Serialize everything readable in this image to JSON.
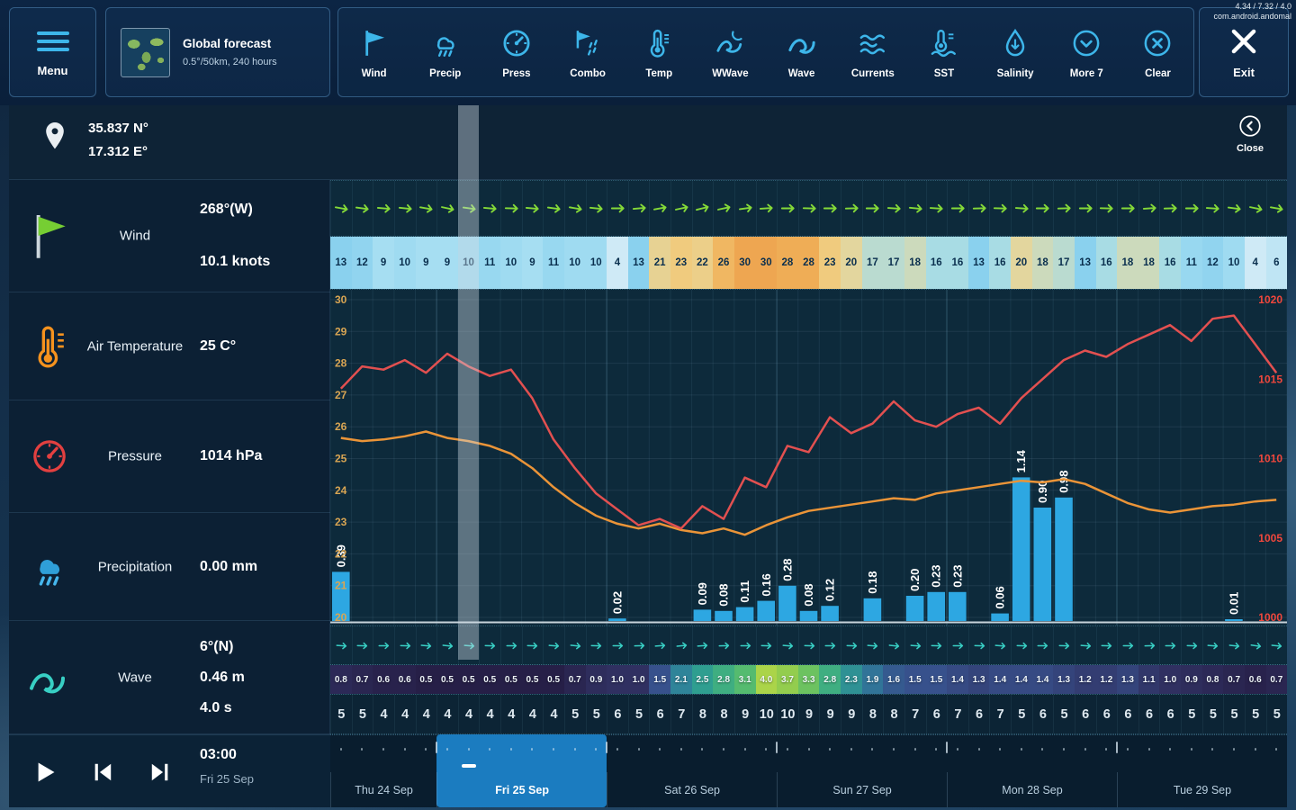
{
  "app": {
    "debug_line1": "4.34 / 7.32 / 4.0",
    "debug_line2": "com.android.andomal"
  },
  "topbar": {
    "menu_label": "Menu",
    "forecast": {
      "title": "Global forecast",
      "subtitle": "0.5°/50km, 240 hours"
    },
    "items": [
      {
        "icon": "wind",
        "label": "Wind"
      },
      {
        "icon": "precip",
        "label": "Precip"
      },
      {
        "icon": "press",
        "label": "Press"
      },
      {
        "icon": "combo",
        "label": "Combo"
      },
      {
        "icon": "temp",
        "label": "Temp"
      },
      {
        "icon": "wwave",
        "label": "WWave"
      },
      {
        "icon": "wave",
        "label": "Wave"
      },
      {
        "icon": "currents",
        "label": "Currents"
      },
      {
        "icon": "sst",
        "label": "SST"
      },
      {
        "icon": "salinity",
        "label": "Salinity"
      },
      {
        "icon": "more",
        "label": "More 7"
      },
      {
        "icon": "clear",
        "label": "Clear"
      }
    ],
    "exit_label": "Exit"
  },
  "panel": {
    "location": {
      "lat": "35.837 N°",
      "lon": "17.312 E°"
    },
    "close_label": "Close",
    "rows": [
      {
        "name": "wind",
        "label": "Wind",
        "values": [
          "268°(W)",
          "10.1 knots"
        ]
      },
      {
        "name": "air-temperature",
        "label": "Air Temperature",
        "values": [
          "25 C°"
        ]
      },
      {
        "name": "pressure",
        "label": "Pressure",
        "values": [
          "1014 hPa"
        ]
      },
      {
        "name": "precipitation",
        "label": "Precipitation",
        "values": [
          "0.00 mm"
        ]
      },
      {
        "name": "wave",
        "label": "Wave",
        "values": [
          "6°(N)",
          "0.46 m",
          "4.0 s"
        ]
      }
    ],
    "player": {
      "time": "03:00",
      "date": "Fri 25 Sep"
    }
  },
  "colors": {
    "accent": "#3db6ea",
    "temperature_line": "#e25050",
    "pressure_line": "#ea9438",
    "precipitation_bar": "#2da7e2",
    "timeline_highlight": "#1b7cc0",
    "wind_arrow": "#84d938",
    "wave_arrow": "#38cfc4",
    "temp_axis_label": "#d8a553",
    "pressure_axis_label": "#f0473c"
  },
  "chart_data": {
    "type": "meteogram",
    "steps": 45,
    "current_step": 6,
    "current_time": "03:00",
    "days": [
      {
        "label": "Thu 24 Sep",
        "steps": 5,
        "selected": false
      },
      {
        "label": "Fri 25 Sep",
        "steps": 8,
        "selected": true
      },
      {
        "label": "Sat 26 Sep",
        "steps": 8,
        "selected": false
      },
      {
        "label": "Sun 27 Sep",
        "steps": 8,
        "selected": false
      },
      {
        "label": "Mon 28 Sep",
        "steps": 8,
        "selected": false
      },
      {
        "label": "Tue 29 Sep",
        "steps": 8,
        "selected": false
      }
    ],
    "axes": {
      "temp_ticks": [
        30,
        29,
        28,
        27,
        26,
        25,
        24,
        23,
        22,
        21,
        20
      ],
      "pressure_ticks": [
        1020,
        1015,
        1010,
        1005,
        1000
      ]
    },
    "wind": {
      "direction_to_deg": [
        100,
        98,
        95,
        96,
        100,
        102,
        98,
        95,
        92,
        95,
        98,
        100,
        96,
        90,
        85,
        80,
        78,
        76,
        78,
        82,
        86,
        90,
        92,
        90,
        88,
        90,
        94,
        96,
        94,
        90,
        88,
        92,
        94,
        90,
        88,
        90,
        92,
        90,
        86,
        88,
        90,
        94,
        98,
        102,
        100
      ],
      "speed_knots": [
        13,
        12,
        9,
        10,
        9,
        9,
        10,
        11,
        10,
        9,
        11,
        10,
        10,
        4,
        13,
        21,
        23,
        22,
        26,
        30,
        30,
        28,
        28,
        23,
        20,
        17,
        17,
        18,
        16,
        16,
        13,
        16,
        20,
        18,
        17,
        13,
        16,
        18,
        18,
        16,
        11,
        12,
        10,
        4,
        6
      ]
    },
    "temperature_c": [
      27.2,
      27.9,
      27.8,
      28.1,
      27.7,
      28.3,
      27.9,
      27.6,
      27.8,
      26.9,
      25.6,
      24.7,
      23.9,
      23.4,
      22.9,
      23.1,
      22.8,
      23.5,
      23.1,
      24.4,
      24.1,
      25.4,
      25.2,
      26.3,
      25.8,
      26.1,
      26.8,
      26.2,
      26.0,
      26.4,
      26.6,
      26.1,
      26.9,
      27.5,
      28.1,
      28.4,
      28.2,
      28.6,
      28.9,
      29.2,
      28.7,
      29.4,
      29.5,
      28.6,
      27.7
    ],
    "pressure_hpa": [
      1011.3,
      1011.1,
      1011.2,
      1011.4,
      1011.7,
      1011.3,
      1011.1,
      1010.8,
      1010.3,
      1009.4,
      1008.2,
      1007.2,
      1006.4,
      1005.9,
      1005.6,
      1005.9,
      1005.5,
      1005.3,
      1005.6,
      1005.2,
      1005.8,
      1006.3,
      1006.7,
      1006.9,
      1007.1,
      1007.3,
      1007.5,
      1007.4,
      1007.8,
      1008.0,
      1008.2,
      1008.4,
      1008.6,
      1008.5,
      1008.7,
      1008.4,
      1007.8,
      1007.2,
      1006.8,
      1006.6,
      1006.8,
      1007.0,
      1007.1,
      1007.3,
      1007.4
    ],
    "precipitation_mm": [
      0.39,
      0,
      0,
      0,
      0,
      0,
      0,
      0,
      0,
      0,
      0,
      0,
      0,
      0.02,
      0,
      0,
      0,
      0.09,
      0.08,
      0.11,
      0.16,
      0.28,
      0.08,
      0.12,
      0,
      0.18,
      0,
      0.2,
      0.23,
      0.23,
      0,
      0.06,
      1.14,
      0.9,
      0.98,
      0,
      0,
      0,
      0,
      0,
      0,
      0,
      0.01,
      0,
      0
    ],
    "wave": {
      "direction_to_deg": [
        94,
        92,
        90,
        92,
        95,
        96,
        94,
        92,
        90,
        92,
        94,
        96,
        92,
        90,
        88,
        86,
        84,
        86,
        88,
        90,
        92,
        94,
        92,
        90,
        92,
        94,
        96,
        94,
        92,
        90,
        92,
        94,
        92,
        90,
        92,
        94,
        92,
        90,
        88,
        90,
        92,
        94,
        96,
        98,
        96
      ],
      "height_m": [
        0.8,
        0.7,
        0.6,
        0.6,
        0.5,
        0.5,
        0.5,
        0.5,
        0.5,
        0.5,
        0.5,
        0.7,
        0.9,
        1.0,
        1.0,
        1.5,
        2.1,
        2.5,
        2.8,
        3.1,
        4.0,
        3.7,
        3.3,
        2.8,
        2.3,
        1.9,
        1.6,
        1.5,
        1.5,
        1.4,
        1.3,
        1.4,
        1.4,
        1.4,
        1.3,
        1.2,
        1.2,
        1.3,
        1.1,
        1.0,
        0.9,
        0.8,
        0.7,
        0.6,
        0.7
      ],
      "period_s": [
        5,
        5,
        4,
        4,
        4,
        4,
        4,
        4,
        4,
        4,
        4,
        5,
        5,
        6,
        5,
        6,
        7,
        8,
        8,
        9,
        10,
        10,
        9,
        9,
        9,
        8,
        8,
        7,
        6,
        7,
        6,
        7,
        5,
        6,
        5,
        6,
        6,
        6,
        6,
        6,
        5,
        5,
        5,
        5,
        5
      ]
    }
  }
}
